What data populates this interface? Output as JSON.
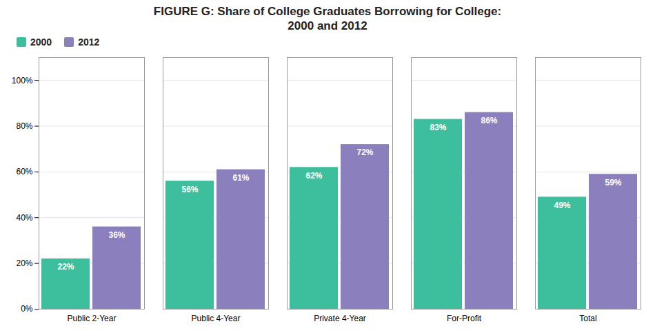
{
  "chart_data": {
    "type": "bar",
    "title": "FIGURE G: Share of College Graduates Borrowing for College:\n2000 and 2012",
    "categories": [
      "Public 2-Year",
      "Public 4-Year",
      "Private 4-Year",
      "For-Profit",
      "Total"
    ],
    "series": [
      {
        "name": "2000",
        "color": "#3dbf9e",
        "values": [
          22,
          56,
          62,
          83,
          49
        ],
        "value_labels": [
          "22%",
          "56%",
          "62%",
          "83%",
          "49%"
        ]
      },
      {
        "name": "2012",
        "color": "#8b7fbe",
        "values": [
          36,
          61,
          72,
          86,
          59
        ],
        "value_labels": [
          "36%",
          "61%",
          "72%",
          "86%",
          "59%"
        ]
      }
    ],
    "ylim": [
      0,
      110
    ],
    "yticks": [
      {
        "value": 0,
        "label": "0%"
      },
      {
        "value": 20,
        "label": "20%"
      },
      {
        "value": 40,
        "label": "40%"
      },
      {
        "value": 60,
        "label": "60%"
      },
      {
        "value": 80,
        "label": "80%"
      },
      {
        "value": 100,
        "label": "100%"
      }
    ],
    "grid": true,
    "legend": "upper left",
    "data_labels": true
  }
}
